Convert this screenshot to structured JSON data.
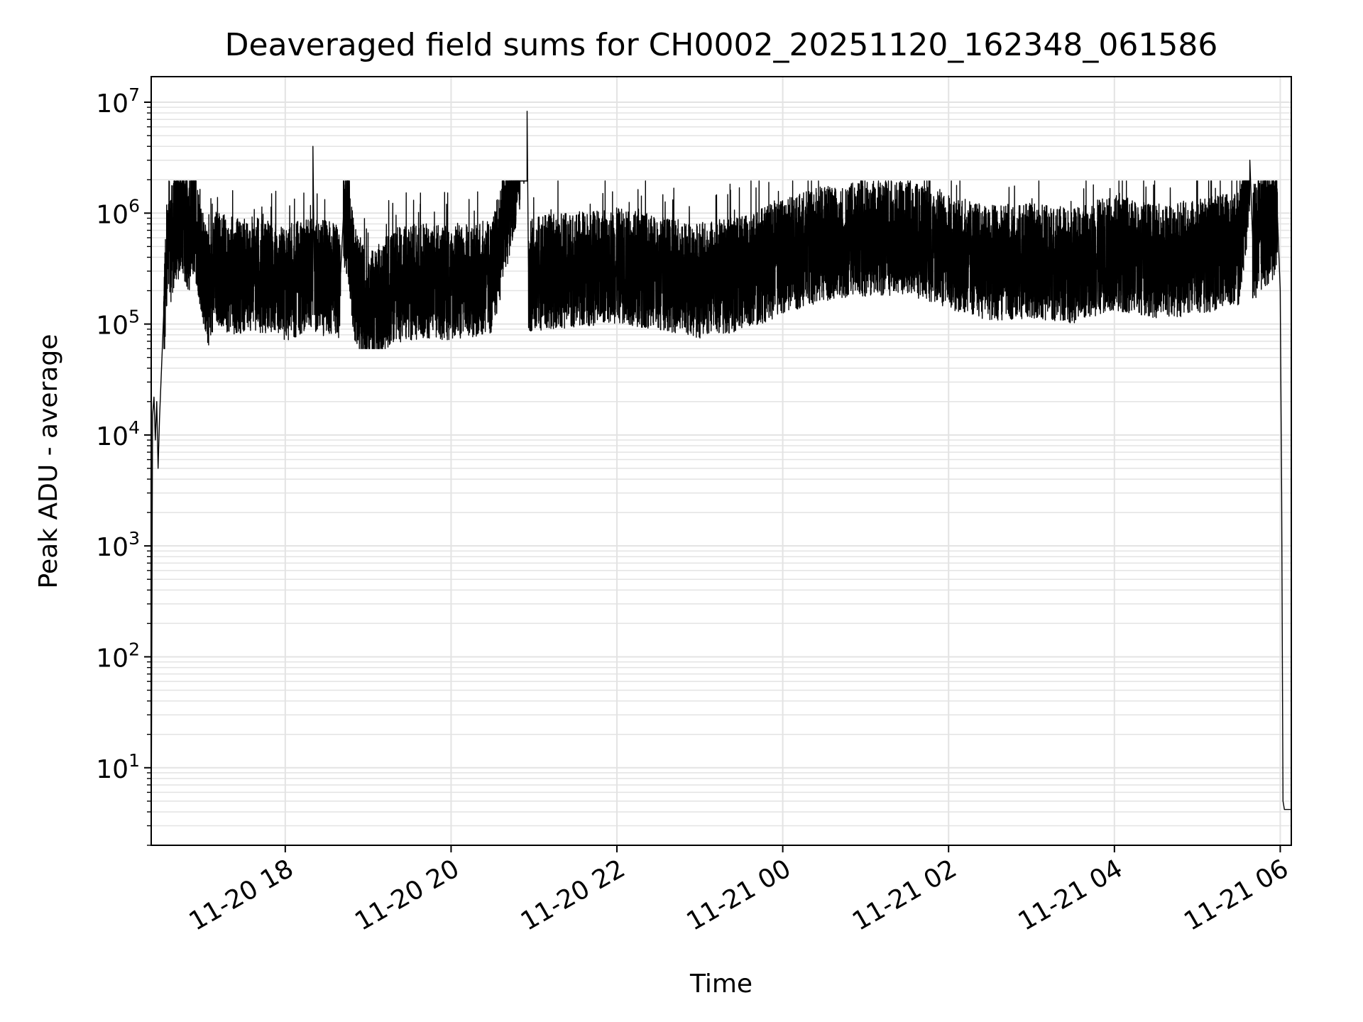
{
  "chart_data": {
    "type": "line",
    "title": "Deaveraged field sums for CH0002_20251120_162348_061586",
    "xlabel": "Time",
    "ylabel": "Peak ADU - average",
    "yscale": "log",
    "ylim": [
      2,
      17000000
    ],
    "xlim": [
      "2025-11-20 16:23",
      "2025-11-21 06:08"
    ],
    "grid": true,
    "line_color": "#000000",
    "grid_color": "#e3e3e3",
    "x_ticks": [
      {
        "t": "2025-11-20 18:00",
        "label": "11-20 18"
      },
      {
        "t": "2025-11-20 20:00",
        "label": "11-20 20"
      },
      {
        "t": "2025-11-20 22:00",
        "label": "11-20 22"
      },
      {
        "t": "2025-11-21 00:00",
        "label": "11-21 00"
      },
      {
        "t": "2025-11-21 02:00",
        "label": "11-21 02"
      },
      {
        "t": "2025-11-21 04:00",
        "label": "11-21 04"
      },
      {
        "t": "2025-11-21 06:00",
        "label": "11-21 06"
      }
    ],
    "y_ticks": [
      {
        "value": 10,
        "base": "10",
        "exp": "1"
      },
      {
        "value": 100,
        "base": "10",
        "exp": "2"
      },
      {
        "value": 1000,
        "base": "10",
        "exp": "3"
      },
      {
        "value": 10000,
        "base": "10",
        "exp": "4"
      },
      {
        "value": 100000,
        "base": "10",
        "exp": "5"
      },
      {
        "value": 1000000,
        "base": "10",
        "exp": "6"
      },
      {
        "value": 10000000,
        "base": "10",
        "exp": "7"
      }
    ],
    "series": [
      {
        "name": "",
        "points": [
          [
            "2025-11-20 16:23",
            2.1
          ],
          [
            "2025-11-20 16:24",
            15000
          ],
          [
            "2025-11-20 16:25",
            22000
          ],
          [
            "2025-11-20 16:26",
            9000
          ],
          [
            "2025-11-20 16:27",
            20000
          ],
          [
            "2025-11-20 16:28",
            5000
          ],
          [
            "2025-11-20 16:29",
            14000
          ],
          [
            "2025-11-20 16:32",
            120000
          ],
          [
            "2025-11-20 16:35",
            450000
          ],
          [
            "2025-11-20 16:40",
            800000
          ],
          [
            "2025-11-20 16:45",
            1100000
          ],
          [
            "2025-11-20 16:50",
            700000
          ],
          [
            "2025-11-20 16:55",
            950000
          ],
          [
            "2025-11-20 17:00",
            400000
          ],
          [
            "2025-11-20 17:05",
            200000
          ],
          [
            "2025-11-20 17:10",
            380000
          ],
          [
            "2025-11-20 17:20",
            300000
          ],
          [
            "2025-11-20 17:40",
            320000
          ],
          [
            "2025-11-20 18:00",
            260000
          ],
          [
            "2025-11-20 18:20",
            330000
          ],
          [
            "2025-11-20 18:20",
            4000000
          ],
          [
            "2025-11-20 18:21",
            300000
          ],
          [
            "2025-11-20 18:40",
            280000
          ],
          [
            "2025-11-20 18:42",
            900000
          ],
          [
            "2025-11-20 18:45",
            1100000
          ],
          [
            "2025-11-20 18:50",
            260000
          ],
          [
            "2025-11-20 19:00",
            150000
          ],
          [
            "2025-11-20 19:20",
            250000
          ],
          [
            "2025-11-20 19:40",
            280000
          ],
          [
            "2025-11-20 20:00",
            260000
          ],
          [
            "2025-11-20 20:30",
            300000
          ],
          [
            "2025-11-20 20:55",
            8300000
          ],
          [
            "2025-11-20 20:56",
            320000
          ],
          [
            "2025-11-20 21:30",
            350000
          ],
          [
            "2025-11-20 22:00",
            380000
          ],
          [
            "2025-11-20 22:30",
            330000
          ],
          [
            "2025-11-20 23:00",
            280000
          ],
          [
            "2025-11-20 23:30",
            320000
          ],
          [
            "2025-11-21 00:00",
            450000
          ],
          [
            "2025-11-21 00:30",
            600000
          ],
          [
            "2025-11-21 01:00",
            650000
          ],
          [
            "2025-11-21 01:30",
            700000
          ],
          [
            "2025-11-21 02:00",
            500000
          ],
          [
            "2025-11-21 02:30",
            400000
          ],
          [
            "2025-11-21 03:00",
            420000
          ],
          [
            "2025-11-21 03:30",
            380000
          ],
          [
            "2025-11-21 04:00",
            500000
          ],
          [
            "2025-11-21 04:30",
            420000
          ],
          [
            "2025-11-21 05:00",
            450000
          ],
          [
            "2025-11-21 05:30",
            550000
          ],
          [
            "2025-11-21 05:38",
            3000000
          ],
          [
            "2025-11-21 05:40",
            600000
          ],
          [
            "2025-11-21 05:50",
            800000
          ],
          [
            "2025-11-21 05:58",
            950000
          ],
          [
            "2025-11-21 06:00",
            200000
          ],
          [
            "2025-11-21 06:01",
            3000
          ],
          [
            "2025-11-21 06:02",
            5
          ],
          [
            "2025-11-21 06:03",
            4.2
          ],
          [
            "2025-11-21 06:08",
            4.2
          ]
        ],
        "noise": {
          "low": 60000,
          "high": 1500000
        }
      }
    ]
  }
}
